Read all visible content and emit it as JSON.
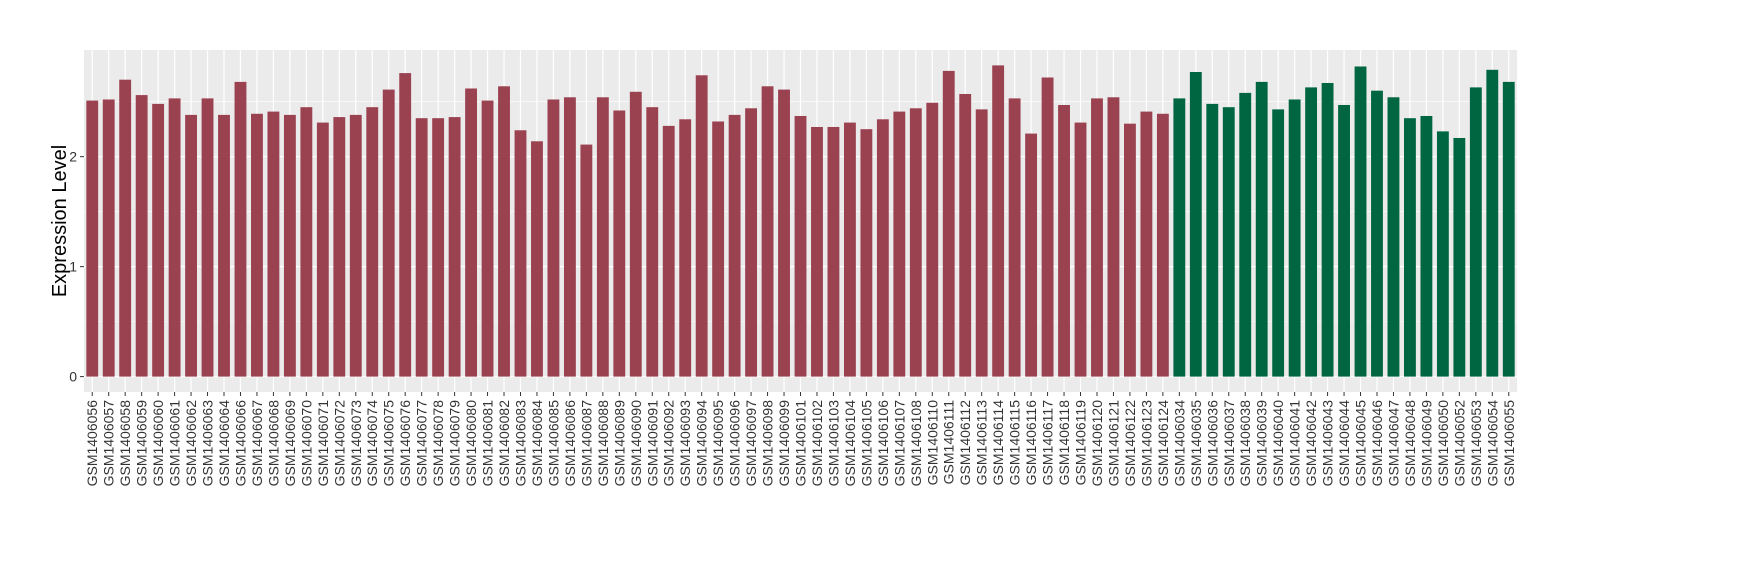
{
  "chart_data": {
    "type": "bar",
    "title": "",
    "xlabel": "",
    "ylabel": "Expression Level",
    "ylim": [
      -0.14,
      2.97
    ],
    "yticks": [
      0,
      1,
      2
    ],
    "grid": true,
    "legend": "none",
    "colors": {
      "group1": "#9b4250",
      "group2": "#006641",
      "panel": "#ebebeb",
      "grid": "#ffffff"
    },
    "categories": [
      "GSM1406056",
      "GSM1406057",
      "GSM1406058",
      "GSM1406059",
      "GSM1406060",
      "GSM1406061",
      "GSM1406062",
      "GSM1406063",
      "GSM1406064",
      "GSM1406066",
      "GSM1406067",
      "GSM1406068",
      "GSM1406069",
      "GSM1406070",
      "GSM1406071",
      "GSM1406072",
      "GSM1406073",
      "GSM1406074",
      "GSM1406075",
      "GSM1406076",
      "GSM1406077",
      "GSM1406078",
      "GSM1406079",
      "GSM1406080",
      "GSM1406081",
      "GSM1406082",
      "GSM1406083",
      "GSM1406084",
      "GSM1406085",
      "GSM1406086",
      "GSM1406087",
      "GSM1406088",
      "GSM1406089",
      "GSM1406090",
      "GSM1406091",
      "GSM1406092",
      "GSM1406093",
      "GSM1406094",
      "GSM1406095",
      "GSM1406096",
      "GSM1406097",
      "GSM1406098",
      "GSM1406099",
      "GSM1406101",
      "GSM1406102",
      "GSM1406103",
      "GSM1406104",
      "GSM1406105",
      "GSM1406106",
      "GSM1406107",
      "GSM1406108",
      "GSM1406110",
      "GSM1406111",
      "GSM1406112",
      "GSM1406113",
      "GSM1406114",
      "GSM1406115",
      "GSM1406116",
      "GSM1406117",
      "GSM1406118",
      "GSM1406119",
      "GSM1406120",
      "GSM1406121",
      "GSM1406122",
      "GSM1406123",
      "GSM1406124",
      "GSM1406034",
      "GSM1406035",
      "GSM1406036",
      "GSM1406037",
      "GSM1406038",
      "GSM1406039",
      "GSM1406040",
      "GSM1406041",
      "GSM1406042",
      "GSM1406043",
      "GSM1406044",
      "GSM1406045",
      "GSM1406046",
      "GSM1406047",
      "GSM1406048",
      "GSM1406049",
      "GSM1406050",
      "GSM1406052",
      "GSM1406053",
      "GSM1406054",
      "GSM1406055"
    ],
    "values": [
      2.51,
      2.52,
      2.7,
      2.56,
      2.48,
      2.53,
      2.38,
      2.53,
      2.38,
      2.68,
      2.39,
      2.41,
      2.38,
      2.45,
      2.31,
      2.36,
      2.38,
      2.45,
      2.61,
      2.76,
      2.35,
      2.35,
      2.36,
      2.62,
      2.51,
      2.64,
      2.24,
      2.14,
      2.52,
      2.54,
      2.11,
      2.54,
      2.42,
      2.59,
      2.45,
      2.28,
      2.34,
      2.74,
      2.32,
      2.38,
      2.44,
      2.64,
      2.61,
      2.37,
      2.27,
      2.27,
      2.31,
      2.25,
      2.34,
      2.41,
      2.44,
      2.49,
      2.78,
      2.57,
      2.43,
      2.83,
      2.53,
      2.21,
      2.72,
      2.47,
      2.31,
      2.53,
      2.54,
      2.3,
      2.41,
      2.39,
      2.53,
      2.77,
      2.48,
      2.45,
      2.58,
      2.68,
      2.43,
      2.52,
      2.63,
      2.67,
      2.47,
      2.82,
      2.6,
      2.54,
      2.35,
      2.37,
      2.23,
      2.17,
      2.63,
      2.79,
      2.68
    ],
    "groups": [
      "group1",
      "group1",
      "group1",
      "group1",
      "group1",
      "group1",
      "group1",
      "group1",
      "group1",
      "group1",
      "group1",
      "group1",
      "group1",
      "group1",
      "group1",
      "group1",
      "group1",
      "group1",
      "group1",
      "group1",
      "group1",
      "group1",
      "group1",
      "group1",
      "group1",
      "group1",
      "group1",
      "group1",
      "group1",
      "group1",
      "group1",
      "group1",
      "group1",
      "group1",
      "group1",
      "group1",
      "group1",
      "group1",
      "group1",
      "group1",
      "group1",
      "group1",
      "group1",
      "group1",
      "group1",
      "group1",
      "group1",
      "group1",
      "group1",
      "group1",
      "group1",
      "group1",
      "group1",
      "group1",
      "group1",
      "group1",
      "group1",
      "group1",
      "group1",
      "group1",
      "group1",
      "group1",
      "group1",
      "group1",
      "group1",
      "group1",
      "group2",
      "group2",
      "group2",
      "group2",
      "group2",
      "group2",
      "group2",
      "group2",
      "group2",
      "group2",
      "group2",
      "group2",
      "group2",
      "group2",
      "group2",
      "group2",
      "group2",
      "group2",
      "group2",
      "group2",
      "group2"
    ]
  }
}
